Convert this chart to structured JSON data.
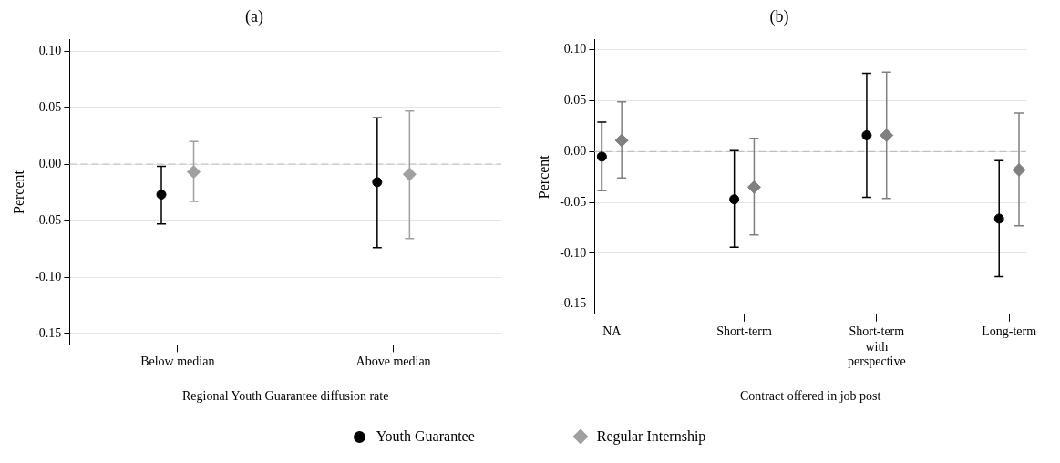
{
  "chart_data": [
    {
      "type": "scatter",
      "title": "(a)",
      "xlabel": "Regional Youth Guarantee diffusion rate",
      "ylabel": "Percent",
      "categories": [
        "Below median",
        "Above median"
      ],
      "series": [
        {
          "name": "Youth Guarantee",
          "color": "#000000",
          "marker": "circle",
          "values": [
            -0.027,
            -0.016
          ],
          "errors": [
            [
              -0.053,
              -0.002
            ],
            [
              -0.074,
              0.041
            ]
          ]
        },
        {
          "name": "Regular Internship",
          "color": "#a0a0a0",
          "marker": "diamond",
          "values": [
            -0.007,
            -0.009
          ],
          "errors": [
            [
              -0.033,
              0.02
            ],
            [
              -0.066,
              0.047
            ]
          ]
        }
      ],
      "ylim": [
        -0.16,
        0.11
      ],
      "yticks": [
        {
          "value": -0.15,
          "label": "-0.15"
        },
        {
          "value": -0.1,
          "label": "-0.10"
        },
        {
          "value": -0.05,
          "label": "-0.05"
        },
        {
          "value": 0,
          "label": "0.00"
        },
        {
          "value": 0.05,
          "label": "0.05"
        },
        {
          "value": 0.1,
          "label": "0.10"
        }
      ],
      "grid": "y",
      "legend": "bottom",
      "ref_lines": [
        {
          "axis": "y",
          "value": 0,
          "color": "#c0c0c0",
          "line_style": "dashed"
        }
      ]
    },
    {
      "type": "scatter",
      "title": "(b)",
      "xlabel": "Contract offered in job post",
      "ylabel": "Percent",
      "categories": [
        "NA",
        "Short-term",
        "Short-term with perspective",
        "Long-term"
      ],
      "series": [
        {
          "color": "#000000",
          "marker": "circle",
          "values": [
            -0.005,
            -0.047,
            0.016,
            -0.066
          ],
          "errors": [
            [
              -0.038,
              0.029
            ],
            [
              -0.094,
              0.001
            ],
            [
              -0.045,
              0.077
            ],
            [
              -0.123,
              -0.009
            ]
          ]
        },
        {
          "color": "#808080",
          "marker": "diamond",
          "values": [
            0.011,
            -0.035,
            0.016,
            -0.018
          ],
          "errors": [
            [
              -0.026,
              0.049
            ],
            [
              -0.082,
              0.013
            ],
            [
              -0.046,
              0.078
            ],
            [
              -0.073,
              0.038
            ]
          ]
        }
      ],
      "ylim": [
        -0.16,
        0.11
      ],
      "yticks": [
        {
          "value": -0.15,
          "label": "-0.15"
        },
        {
          "value": -0.1,
          "label": "-0.10"
        },
        {
          "value": -0.05,
          "label": "-0.05"
        },
        {
          "value": 0,
          "label": "0.00"
        },
        {
          "value": 0.05,
          "label": "0.05"
        },
        {
          "value": 0.1,
          "label": "0.10"
        }
      ],
      "grid": "y",
      "ref_lines": [
        {
          "axis": "y",
          "value": 0,
          "color": "#c0c0c0",
          "line_style": "dashed"
        }
      ]
    }
  ]
}
